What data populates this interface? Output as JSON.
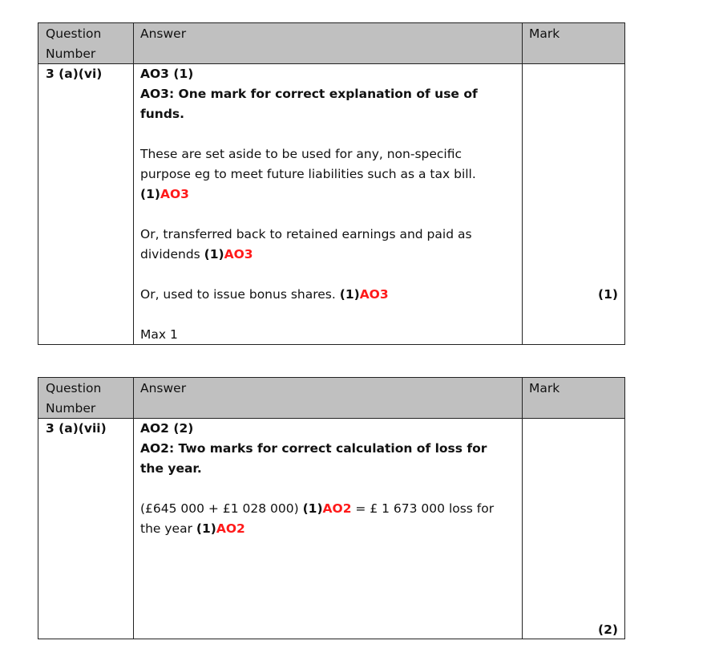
{
  "colors": {
    "header_bg": "#c0c0c0",
    "red": "#ff1a1a"
  },
  "tables": [
    {
      "header": {
        "question": [
          "Question",
          "Number"
        ],
        "answer": "Answer",
        "mark": "Mark"
      },
      "question_number": "3 (a)(vi)",
      "mark": "(1)",
      "answer_lines": [
        [
          {
            "t": "AO3 (1)",
            "s": "b"
          }
        ],
        [
          {
            "t": "AO3: One mark for correct explanation of use of",
            "s": "b"
          }
        ],
        [
          {
            "t": "funds.",
            "s": "b"
          }
        ],
        [],
        [
          {
            "t": "These are set aside to be used for any, non-specific",
            "s": "n"
          }
        ],
        [
          {
            "t": "purpose eg to meet future liabilities such as a tax bill.",
            "s": "n"
          }
        ],
        [
          {
            "t": "(1)",
            "s": "b"
          },
          {
            "t": "AO3",
            "s": "r"
          }
        ],
        [],
        [
          {
            "t": "Or, transferred back to retained earnings and paid as",
            "s": "n"
          }
        ],
        [
          {
            "t": "dividends ",
            "s": "n"
          },
          {
            "t": "(1)",
            "s": "b"
          },
          {
            "t": "AO3",
            "s": "r"
          }
        ],
        [],
        [
          {
            "t": "Or, used to issue bonus shares. ",
            "s": "n"
          },
          {
            "t": "(1)",
            "s": "b"
          },
          {
            "t": "AO3",
            "s": "r"
          }
        ],
        [],
        [
          {
            "t": "Max 1",
            "s": "n"
          }
        ]
      ]
    },
    {
      "header": {
        "question": [
          "Question",
          "Number"
        ],
        "answer": "Answer",
        "mark": "Mark"
      },
      "question_number": "3 (a)(vii)",
      "mark": "(2)",
      "answer_lines": [
        [
          {
            "t": "AO2 (2)",
            "s": "b"
          }
        ],
        [
          {
            "t": "AO2: Two marks for correct calculation of loss for",
            "s": "b"
          }
        ],
        [
          {
            "t": "the year.",
            "s": "b"
          }
        ],
        [],
        [
          {
            "t": "(£645 000 + £1 028 000) ",
            "s": "n"
          },
          {
            "t": "(1)",
            "s": "b"
          },
          {
            "t": "AO2",
            "s": "r"
          },
          {
            "t": " = £ 1 673 000 loss for",
            "s": "n"
          }
        ],
        [
          {
            "t": "the year ",
            "s": "n"
          },
          {
            "t": "(1)",
            "s": "b"
          },
          {
            "t": "AO2",
            "s": "r"
          }
        ]
      ]
    }
  ]
}
